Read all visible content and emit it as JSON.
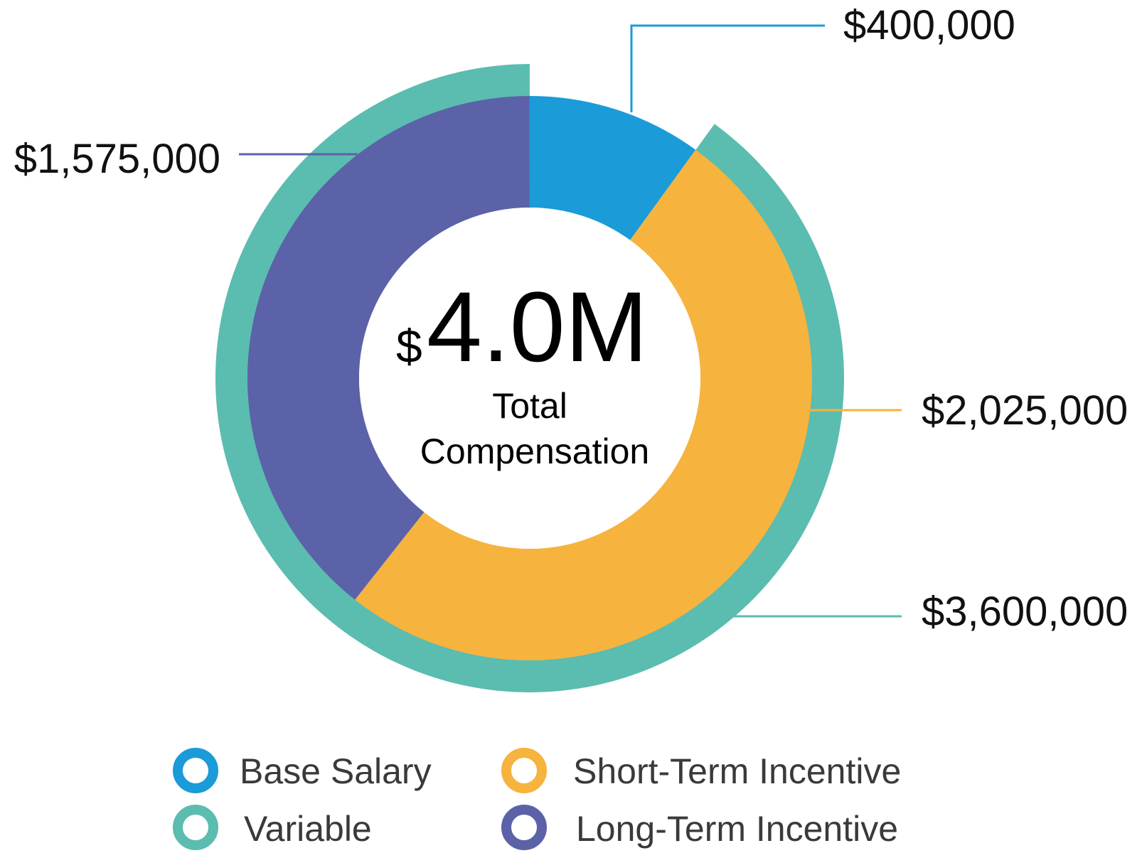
{
  "chart_data": {
    "type": "donut",
    "center": {
      "currency": "$",
      "amount": "4.0M",
      "line1": "Total",
      "line2": "Compensation"
    },
    "inner_ring": [
      {
        "name": "Base Salary",
        "value": 400000,
        "label": "$400,000",
        "color": "#1b9bd7"
      },
      {
        "name": "Short-Term Incentive",
        "value": 2025000,
        "label": "$2,025,000",
        "color": "#f6b33d"
      },
      {
        "name": "Long-Term Incentive",
        "value": 1575000,
        "label": "$1,575,000",
        "color": "#5b62a8"
      }
    ],
    "outer_ring": [
      {
        "name": "Variable",
        "value": 3600000,
        "label": "$3,600,000",
        "color": "#5bbcb0"
      }
    ],
    "total": 4000000
  },
  "legend": [
    {
      "label": "Base Salary",
      "color": "#1b9bd7"
    },
    {
      "label": "Short-Term Incentive",
      "color": "#f6b33d"
    },
    {
      "label": "Variable",
      "color": "#5bbcb0"
    },
    {
      "label": "Long-Term Incentive",
      "color": "#5b62a8"
    }
  ]
}
